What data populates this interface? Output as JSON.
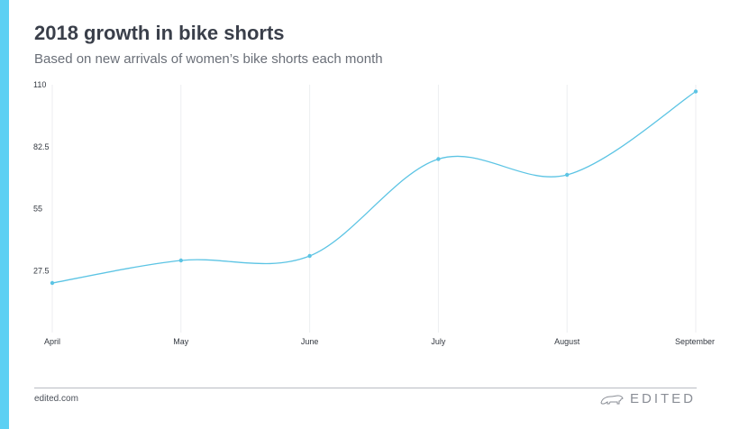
{
  "title": "2018 growth in bike shorts",
  "subtitle": "Based on new arrivals of women’s bike shorts each month",
  "chart_data": {
    "type": "line",
    "categories": [
      "April",
      "May",
      "June",
      "July",
      "August",
      "September"
    ],
    "series": [
      {
        "values": [
          22,
          32,
          34,
          77,
          70,
          107
        ]
      }
    ],
    "ylim": [
      0,
      110
    ],
    "yticks": [
      "110",
      "82.5",
      "55",
      "27.5"
    ],
    "ytick_values": [
      110,
      82.5,
      55,
      27.5
    ],
    "grid": "vertical",
    "line_color": "#5cc4e4"
  },
  "footer": {
    "source": "edited.com",
    "brand": "EDITED",
    "brand_icon": "polar-bear-icon"
  }
}
